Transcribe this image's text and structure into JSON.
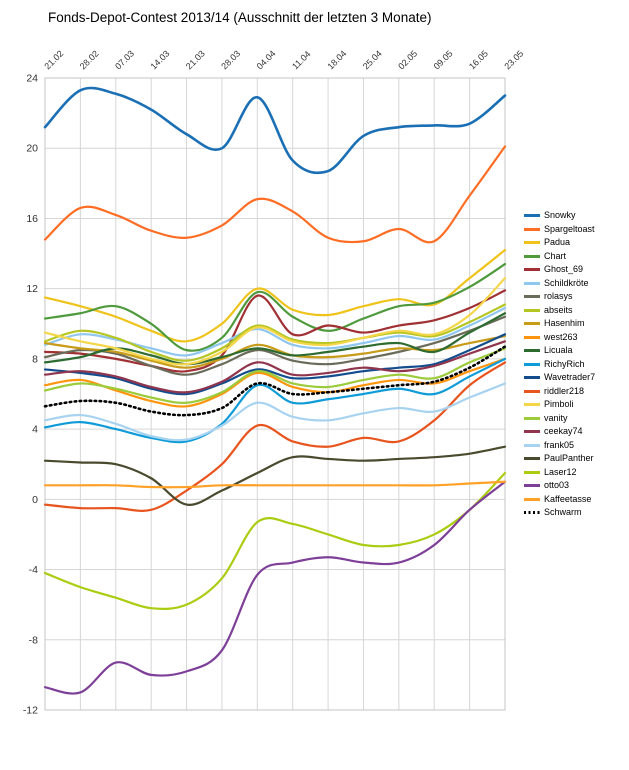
{
  "chart_data": {
    "type": "line",
    "title": "Fonds-Depot-Contest 2013/14 (Ausschnitt der letzten 3 Monate)",
    "xlabel": "",
    "ylabel": "",
    "ylim": [
      -12,
      24
    ],
    "ytick_step": 4,
    "grid": true,
    "legend_position": "right",
    "categories": [
      "21.02",
      "28.02",
      "07.03",
      "14.03",
      "21.03",
      "28.03",
      "04.04",
      "11.04",
      "18.04",
      "25.04",
      "02.05",
      "09.05",
      "16.05",
      "23.05"
    ],
    "series": [
      {
        "name": "Snowky",
        "color": "#1A6FB5",
        "width": 2.6,
        "style": "solid",
        "values": [
          21.2,
          23.3,
          23.1,
          22.2,
          20.8,
          20.0,
          22.9,
          19.3,
          18.7,
          20.7,
          21.2,
          21.3,
          21.4,
          23.0
        ]
      },
      {
        "name": "Spargeltoast",
        "color": "#FF6D24",
        "width": 2.2,
        "style": "solid",
        "values": [
          14.8,
          16.6,
          16.2,
          15.3,
          14.9,
          15.6,
          17.1,
          16.4,
          14.9,
          14.7,
          15.4,
          14.7,
          17.3,
          20.1
        ]
      },
      {
        "name": "Padua",
        "color": "#EFC319",
        "width": 2.2,
        "style": "solid",
        "values": [
          11.5,
          11.0,
          10.4,
          9.6,
          9.0,
          10.0,
          12.0,
          10.8,
          10.5,
          11.0,
          11.4,
          11.1,
          12.6,
          14.2
        ]
      },
      {
        "name": "Chart",
        "color": "#4E9A3C",
        "width": 2.2,
        "style": "solid",
        "values": [
          10.3,
          10.6,
          11.0,
          10.0,
          8.5,
          9.2,
          11.8,
          10.4,
          9.6,
          10.3,
          11.0,
          11.2,
          12.1,
          13.4
        ]
      },
      {
        "name": "Ghost_69",
        "color": "#A03033",
        "width": 2.2,
        "style": "solid",
        "values": [
          8.4,
          8.3,
          8.0,
          7.6,
          7.3,
          8.2,
          11.6,
          9.4,
          9.9,
          9.5,
          9.9,
          10.2,
          10.9,
          11.9
        ]
      },
      {
        "name": "Schildkröte",
        "color": "#8FC7EE",
        "width": 2.2,
        "style": "solid",
        "values": [
          8.8,
          9.4,
          9.1,
          8.6,
          8.2,
          8.9,
          9.7,
          8.8,
          8.6,
          8.9,
          9.3,
          9.1,
          9.9,
          10.9
        ]
      },
      {
        "name": "rolasys",
        "color": "#6B6B5A",
        "width": 2.2,
        "style": "solid",
        "values": [
          8.1,
          8.5,
          8.3,
          7.6,
          7.1,
          7.7,
          8.5,
          7.9,
          7.7,
          8.0,
          8.4,
          8.9,
          9.6,
          10.4
        ]
      },
      {
        "name": "abseits",
        "color": "#B5C622",
        "width": 2.2,
        "style": "solid",
        "values": [
          9.0,
          9.6,
          9.2,
          8.4,
          7.9,
          8.6,
          9.9,
          9.1,
          8.9,
          9.2,
          9.5,
          9.3,
          10.1,
          11.1
        ]
      },
      {
        "name": "Hasenhim",
        "color": "#C89B18",
        "width": 2.2,
        "style": "solid",
        "values": [
          8.9,
          8.6,
          8.4,
          7.9,
          7.5,
          8.0,
          8.8,
          8.2,
          8.1,
          8.3,
          8.6,
          8.5,
          8.9,
          9.3
        ]
      },
      {
        "name": "west263",
        "color": "#FF950E",
        "width": 2.2,
        "style": "solid",
        "values": [
          6.5,
          6.8,
          6.2,
          5.6,
          5.3,
          6.0,
          7.2,
          6.4,
          6.1,
          6.5,
          6.8,
          6.6,
          7.3,
          8.0
        ]
      },
      {
        "name": "Licuala",
        "color": "#2E6B30",
        "width": 2.2,
        "style": "solid",
        "values": [
          7.8,
          8.1,
          8.6,
          8.2,
          7.7,
          8.1,
          8.6,
          8.2,
          8.4,
          8.7,
          8.9,
          8.4,
          9.5,
          10.6
        ]
      },
      {
        "name": "RichyRich",
        "color": "#0E9BD8",
        "width": 2.2,
        "style": "solid",
        "values": [
          4.1,
          4.4,
          4.0,
          3.5,
          3.3,
          4.3,
          6.5,
          5.5,
          5.7,
          6.0,
          6.3,
          6.0,
          7.0,
          8.0
        ]
      },
      {
        "name": "Wavetrader7",
        "color": "#134D8D",
        "width": 2.2,
        "style": "solid",
        "values": [
          7.4,
          7.2,
          6.9,
          6.3,
          6.0,
          6.6,
          7.4,
          6.9,
          7.0,
          7.3,
          7.5,
          7.7,
          8.5,
          9.4
        ]
      },
      {
        "name": "riddler218",
        "color": "#E8541E",
        "width": 2.2,
        "style": "solid",
        "values": [
          -0.3,
          -0.5,
          -0.5,
          -0.6,
          0.5,
          2.0,
          4.2,
          3.3,
          3.0,
          3.5,
          3.3,
          4.5,
          6.5,
          7.8
        ]
      },
      {
        "name": "Pimboli",
        "color": "#F5D648",
        "width": 2.2,
        "style": "solid",
        "values": [
          9.5,
          9.0,
          8.6,
          8.0,
          7.7,
          8.4,
          9.8,
          9.0,
          8.8,
          9.2,
          9.6,
          9.4,
          10.5,
          12.6
        ]
      },
      {
        "name": "vanity",
        "color": "#9CCB3B",
        "width": 2.2,
        "style": "solid",
        "values": [
          6.2,
          6.6,
          6.3,
          5.8,
          5.5,
          6.1,
          7.3,
          6.6,
          6.4,
          6.8,
          7.1,
          6.9,
          7.8,
          8.6
        ]
      },
      {
        "name": "ceekay74",
        "color": "#90354D",
        "width": 2.2,
        "style": "solid",
        "values": [
          7.1,
          7.3,
          7.0,
          6.4,
          6.1,
          6.7,
          7.8,
          7.1,
          7.2,
          7.5,
          7.3,
          7.6,
          8.3,
          9.0
        ]
      },
      {
        "name": "frank05",
        "color": "#A8D3F0",
        "width": 2.2,
        "style": "solid",
        "values": [
          4.5,
          4.8,
          4.3,
          3.6,
          3.4,
          4.2,
          5.5,
          4.7,
          4.5,
          4.9,
          5.2,
          5.0,
          5.8,
          6.6
        ]
      },
      {
        "name": "PaulPanther",
        "color": "#4A4A2F",
        "width": 2.2,
        "style": "solid",
        "values": [
          2.2,
          2.1,
          2.0,
          1.2,
          -0.3,
          0.5,
          1.5,
          2.4,
          2.3,
          2.2,
          2.3,
          2.4,
          2.6,
          3.0
        ]
      },
      {
        "name": "Laser12",
        "color": "#AACC11",
        "width": 2.2,
        "style": "solid",
        "values": [
          -4.2,
          -5.0,
          -5.6,
          -6.2,
          -6.0,
          -4.5,
          -1.3,
          -1.4,
          -2.0,
          -2.6,
          -2.6,
          -2.0,
          -0.6,
          1.5
        ]
      },
      {
        "name": "otto03",
        "color": "#7D3F98",
        "width": 2.2,
        "style": "solid",
        "values": [
          -10.7,
          -11.0,
          -9.3,
          -10.0,
          -9.8,
          -8.6,
          -4.3,
          -3.6,
          -3.3,
          -3.6,
          -3.6,
          -2.6,
          -0.6,
          1.0
        ]
      },
      {
        "name": "Kaffeetasse",
        "color": "#FFA126",
        "width": 2.2,
        "style": "solid",
        "values": [
          0.8,
          0.8,
          0.8,
          0.7,
          0.7,
          0.8,
          0.8,
          0.8,
          0.8,
          0.8,
          0.8,
          0.8,
          0.9,
          1.0
        ]
      },
      {
        "name": "Schwarm",
        "color": "#000000",
        "width": 2.6,
        "style": "dotted",
        "values": [
          5.3,
          5.6,
          5.5,
          5.0,
          4.8,
          5.2,
          6.6,
          6.0,
          6.1,
          6.3,
          6.5,
          6.7,
          7.5,
          8.7
        ]
      }
    ],
    "colors": {
      "grid": "#d6d6d6",
      "plot_border": "#c4c4c4",
      "axis_text": "#333333"
    }
  }
}
